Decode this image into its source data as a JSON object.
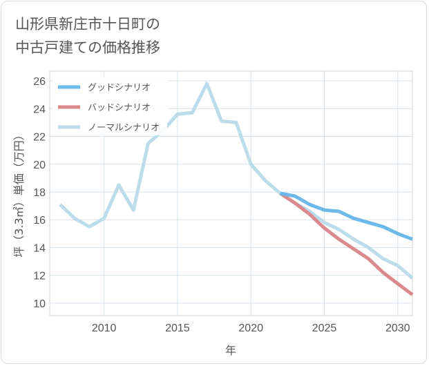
{
  "title": "山形県新庄市十日町の\n中古戸建ての価格推移",
  "chart_data": {
    "type": "line",
    "xlabel": "年",
    "ylabel": "坪（3.3㎡）単価（万円）",
    "xlim": [
      2006.3,
      2031
    ],
    "ylim": [
      9.1,
      26.7
    ],
    "xticks": [
      2010,
      2015,
      2020,
      2025,
      2030
    ],
    "yticks": [
      10,
      12,
      14,
      16,
      18,
      20,
      22,
      24,
      26
    ],
    "grid": true,
    "legend_position": "top-left",
    "series": [
      {
        "name": "グッドシナリオ",
        "color": "#6cb9ea",
        "x": [
          2022,
          2023,
          2024,
          2025,
          2026,
          2027,
          2028,
          2029,
          2030,
          2031
        ],
        "y": [
          17.9,
          17.7,
          17.1,
          16.7,
          16.6,
          16.1,
          15.8,
          15.5,
          15.0,
          14.6
        ]
      },
      {
        "name": "バッドシナリオ",
        "color": "#da8a8f",
        "x": [
          2022,
          2023,
          2024,
          2025,
          2026,
          2027,
          2028,
          2029,
          2030,
          2031
        ],
        "y": [
          17.9,
          17.2,
          16.4,
          15.4,
          14.6,
          13.9,
          13.2,
          12.2,
          11.4,
          10.6
        ]
      },
      {
        "name": "ノーマルシナリオ",
        "color": "#bcdcea",
        "x": [
          2007,
          2008,
          2009,
          2010,
          2011,
          2012,
          2013,
          2014,
          2015,
          2016,
          2017,
          2018,
          2019,
          2020,
          2021,
          2022,
          2023,
          2024,
          2025,
          2026,
          2027,
          2028,
          2029,
          2030,
          2031
        ],
        "y": [
          17.1,
          16.1,
          15.5,
          16.1,
          18.5,
          16.7,
          21.5,
          22.4,
          23.6,
          23.7,
          25.8,
          23.1,
          23.0,
          20.0,
          18.8,
          17.9,
          17.2,
          16.6,
          15.8,
          15.3,
          14.6,
          14.0,
          13.2,
          12.7,
          11.8
        ]
      }
    ]
  }
}
